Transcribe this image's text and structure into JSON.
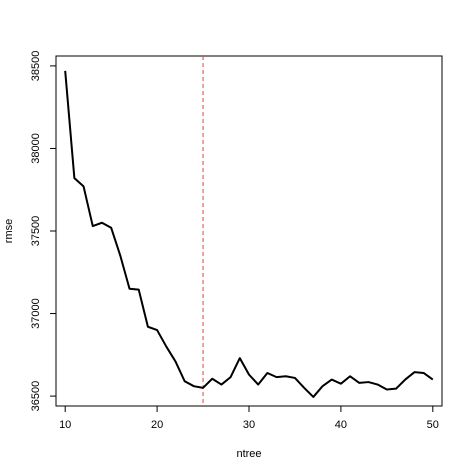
{
  "chart_data": {
    "type": "line",
    "title": "",
    "xlabel": "ntree",
    "ylabel": "rmse",
    "xlim": [
      9,
      51
    ],
    "ylim": [
      36440,
      38560
    ],
    "grid": false,
    "legend": "none",
    "x_ticks": [
      10,
      20,
      30,
      40,
      50
    ],
    "x_tick_labels": [
      "10",
      "20",
      "30",
      "40",
      "50"
    ],
    "y_ticks": [
      36500,
      37000,
      37500,
      38000,
      38500
    ],
    "y_tick_labels": [
      "36500",
      "37000",
      "37500",
      "38000",
      "38500"
    ],
    "series": [
      {
        "color": "#000000",
        "x": [
          10,
          11,
          12,
          13,
          14,
          15,
          16,
          17,
          18,
          19,
          20,
          21,
          22,
          23,
          24,
          25,
          26,
          27,
          28,
          29,
          30,
          31,
          32,
          33,
          34,
          35,
          36,
          37,
          38,
          39,
          40,
          41,
          42,
          43,
          44,
          45,
          46,
          47,
          48,
          49,
          50
        ],
        "values": [
          38470,
          37820,
          37770,
          37530,
          37550,
          37520,
          37350,
          37150,
          37145,
          36920,
          36900,
          36800,
          36710,
          36590,
          36560,
          36550,
          36605,
          36570,
          36615,
          36730,
          36630,
          36570,
          36640,
          36615,
          36620,
          36610,
          36550,
          36495,
          36560,
          36600,
          36575,
          36620,
          36580,
          36585,
          36570,
          36540,
          36545,
          36600,
          36645,
          36640,
          36600
        ]
      }
    ],
    "reference_lines": [
      {
        "orientation": "vertical",
        "x": 25,
        "color": "#e0453a",
        "style": "dashed"
      }
    ]
  }
}
